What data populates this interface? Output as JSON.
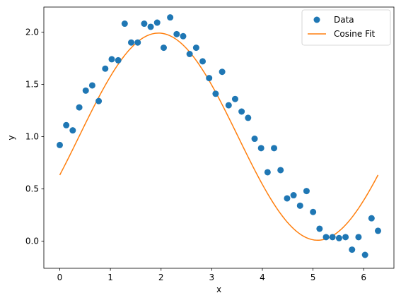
{
  "chart_data": {
    "type": "scatter",
    "xlabel": "x",
    "ylabel": "y",
    "xlim": [
      -0.3142,
      6.5973
    ],
    "ylim": [
      -0.2582,
      2.2388
    ],
    "xticks": [
      0,
      1,
      2,
      3,
      4,
      5,
      6
    ],
    "yticks": [
      0.0,
      0.5,
      1.0,
      1.5,
      2.0
    ],
    "xtick_labels": [
      "0",
      "1",
      "2",
      "3",
      "4",
      "5",
      "6"
    ],
    "ytick_labels": [
      "0.0",
      "0.5",
      "1.0",
      "1.5",
      "2.0"
    ],
    "grid": false,
    "legend_position": "top-right",
    "series": [
      {
        "name": "Data",
        "kind": "scatter",
        "color": "#1f77b4",
        "x": [
          0.0,
          0.128,
          0.256,
          0.385,
          0.513,
          0.641,
          0.769,
          0.898,
          1.026,
          1.154,
          1.282,
          1.41,
          1.539,
          1.667,
          1.795,
          1.923,
          2.052,
          2.18,
          2.308,
          2.436,
          2.564,
          2.693,
          2.821,
          2.949,
          3.077,
          3.206,
          3.334,
          3.462,
          3.59,
          3.718,
          3.847,
          3.975,
          4.103,
          4.231,
          4.359,
          4.488,
          4.616,
          4.744,
          4.872,
          5.001,
          5.129,
          5.257,
          5.385,
          5.514,
          5.642,
          5.77,
          5.898,
          6.027,
          6.155,
          6.283
        ],
        "y": [
          0.92,
          1.11,
          1.06,
          1.28,
          1.44,
          1.49,
          1.34,
          1.65,
          1.74,
          1.73,
          2.08,
          1.9,
          1.9,
          2.08,
          2.05,
          2.09,
          1.85,
          2.14,
          1.98,
          1.96,
          1.79,
          1.85,
          1.72,
          1.56,
          1.41,
          1.62,
          1.3,
          1.36,
          1.24,
          1.18,
          0.98,
          0.89,
          0.66,
          0.89,
          0.68,
          0.41,
          0.44,
          0.34,
          0.48,
          0.28,
          0.12,
          0.04,
          0.04,
          0.03,
          0.04,
          -0.08,
          0.04,
          -0.13,
          0.22,
          0.1
        ]
      },
      {
        "name": "Cosine Fit",
        "kind": "line",
        "color": "#ff7f0e",
        "function": {
          "amplitude": 0.99,
          "frequency": 1.0,
          "phase": -1.95,
          "offset": 1.0
        }
      }
    ]
  }
}
